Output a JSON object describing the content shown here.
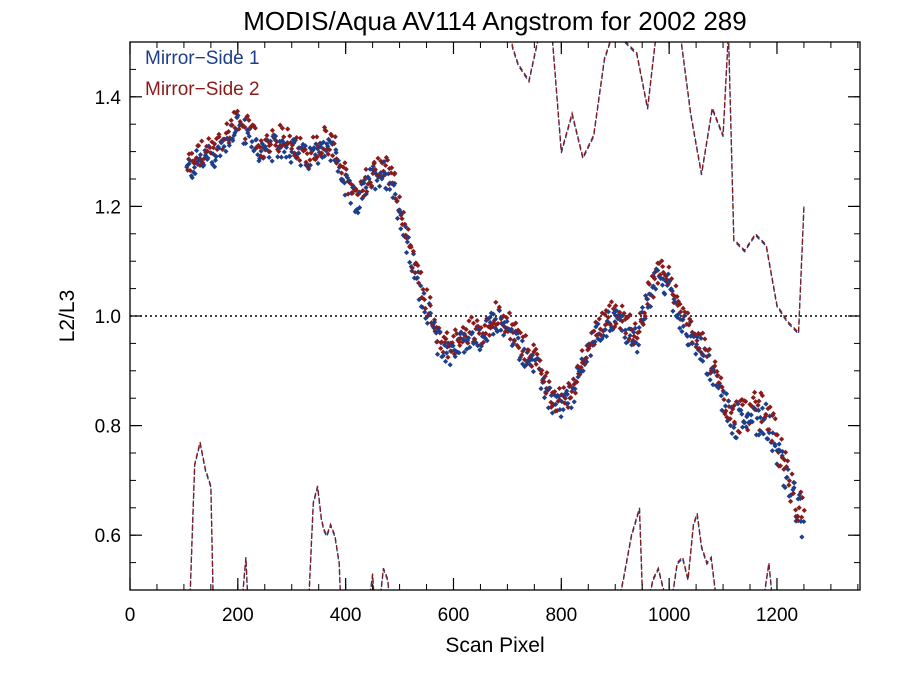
{
  "chart_data": {
    "type": "scatter",
    "title": "MODIS/Aqua AV114 Angstrom for 2002 289",
    "xlabel": "Scan Pixel",
    "ylabel": "L2/L3",
    "xlim": [
      0,
      1354
    ],
    "ylim": [
      0.5,
      1.5
    ],
    "x_ticks": [
      0,
      200,
      400,
      600,
      800,
      1000,
      1200
    ],
    "y_ticks": [
      0.6,
      0.8,
      1.0,
      1.2,
      1.4
    ],
    "x_tick_labels": [
      "0",
      "200",
      "400",
      "600",
      "800",
      "1000",
      "1200"
    ],
    "y_tick_labels": [
      "0.6",
      "0.8",
      "1.0",
      "1.2",
      "1.4"
    ],
    "reference_line": 1.0,
    "legend_position": "top-left",
    "colors": {
      "mirror_side_1": "#1b3f8b",
      "mirror_side_2": "#8b1a1a"
    },
    "trend": {
      "x": [
        105,
        130,
        160,
        200,
        220,
        250,
        280,
        300,
        330,
        360,
        380,
        400,
        420,
        450,
        470,
        490,
        510,
        530,
        550,
        570,
        590,
        610,
        630,
        650,
        680,
        700,
        730,
        760,
        780,
        800,
        820,
        840,
        860,
        880,
        900,
        920,
        940,
        960,
        980,
        1000,
        1020,
        1040,
        1060,
        1080,
        1100,
        1120,
        1140,
        1160,
        1180,
        1200,
        1220,
        1240,
        1250
      ],
      "y": [
        1.27,
        1.29,
        1.3,
        1.36,
        1.33,
        1.3,
        1.32,
        1.31,
        1.29,
        1.32,
        1.3,
        1.24,
        1.21,
        1.26,
        1.27,
        1.24,
        1.15,
        1.08,
        1.02,
        0.96,
        0.94,
        0.95,
        0.97,
        0.96,
        1.0,
        0.98,
        0.94,
        0.9,
        0.85,
        0.84,
        0.86,
        0.92,
        0.96,
        0.99,
        1.0,
        0.98,
        0.96,
        1.03,
        1.08,
        1.06,
        1.0,
        0.97,
        0.94,
        0.9,
        0.85,
        0.81,
        0.82,
        0.82,
        0.82,
        0.76,
        0.7,
        0.65,
        0.62
      ]
    },
    "dashed_series": {
      "upper": {
        "x": [
          700,
          710,
          720,
          740,
          760,
          780,
          800,
          820,
          840,
          860,
          880,
          900,
          920,
          940,
          960,
          980,
          1000,
          1020,
          1040,
          1060,
          1080,
          1100,
          1110,
          1120,
          1140,
          1160,
          1180,
          1200,
          1220,
          1240,
          1250
        ],
        "y": [
          1.54,
          1.49,
          1.46,
          1.43,
          1.52,
          1.55,
          1.3,
          1.37,
          1.29,
          1.33,
          1.47,
          1.53,
          1.5,
          1.48,
          1.38,
          1.55,
          1.5,
          1.52,
          1.37,
          1.26,
          1.38,
          1.33,
          1.52,
          1.14,
          1.12,
          1.15,
          1.13,
          1.02,
          0.99,
          0.97,
          1.2
        ]
      },
      "lower": [
        {
          "x": [
            110,
            120,
            130,
            140,
            150,
            155
          ],
          "y": [
            0.45,
            0.73,
            0.77,
            0.72,
            0.69,
            0.45
          ]
        },
        {
          "x": [
            205,
            215,
            220
          ],
          "y": [
            0.45,
            0.56,
            0.45
          ]
        },
        {
          "x": [
            330,
            340,
            348,
            355,
            360,
            365,
            372,
            380,
            388,
            392
          ],
          "y": [
            0.45,
            0.66,
            0.69,
            0.63,
            0.61,
            0.6,
            0.62,
            0.6,
            0.55,
            0.45
          ]
        },
        {
          "x": [
            440,
            450,
            455
          ],
          "y": [
            0.45,
            0.53,
            0.45
          ]
        },
        {
          "x": [
            460,
            470,
            478,
            485
          ],
          "y": [
            0.45,
            0.54,
            0.52,
            0.45
          ]
        },
        {
          "x": [
            900,
            915,
            930,
            945,
            952
          ],
          "y": [
            0.45,
            0.52,
            0.6,
            0.65,
            0.45
          ]
        },
        {
          "x": [
            955,
            970,
            980,
            990,
            1000
          ],
          "y": [
            0.45,
            0.52,
            0.54,
            0.5,
            0.45
          ]
        },
        {
          "x": [
            1000,
            1015,
            1025,
            1035,
            1045,
            1052,
            1060,
            1070,
            1078,
            1088,
            1095
          ],
          "y": [
            0.45,
            0.55,
            0.56,
            0.52,
            0.62,
            0.64,
            0.58,
            0.55,
            0.56,
            0.48,
            0.45
          ]
        },
        {
          "x": [
            1170,
            1185,
            1195
          ],
          "y": [
            0.45,
            0.55,
            0.45
          ]
        }
      ]
    },
    "legend": {
      "mirror_side_1": "Mirror−Side 1",
      "mirror_side_2": "Mirror−Side 2"
    }
  }
}
